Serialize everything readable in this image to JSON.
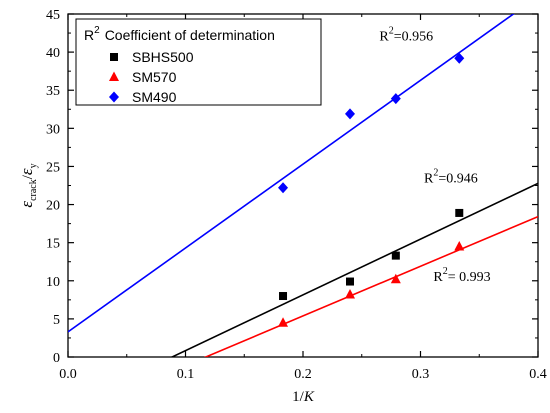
{
  "chart_data": {
    "type": "scatter",
    "xlabel": "1/K",
    "ylabel": "ε_crack/ε_y",
    "xlim": [
      0.0,
      0.4
    ],
    "ylim": [
      0,
      45
    ],
    "xticks": [
      "0.0",
      "0.1",
      "0.2",
      "0.3",
      "0.4"
    ],
    "yticks": [
      "0",
      "5",
      "10",
      "15",
      "20",
      "25",
      "30",
      "35",
      "40",
      "45"
    ],
    "legend": {
      "placement": "top-left",
      "header": {
        "symbol": "R",
        "superscript": "2",
        "text": "Coefficient of determination"
      }
    },
    "series": [
      {
        "name": "SBHS500",
        "color": "#000000",
        "marker": "square",
        "points": [
          [
            0.183,
            8.0
          ],
          [
            0.24,
            9.9
          ],
          [
            0.279,
            13.3
          ],
          [
            0.333,
            18.9
          ]
        ],
        "fit": {
          "slope": 73.15,
          "intercept": -6.48
        },
        "r2_text": "=0.946",
        "r2_at": [
          0.303,
          22.9
        ]
      },
      {
        "name": "SM570",
        "color": "#ff0000",
        "marker": "triangle",
        "points": [
          [
            0.183,
            4.5
          ],
          [
            0.24,
            8.2
          ],
          [
            0.279,
            10.2
          ],
          [
            0.333,
            14.5
          ]
        ],
        "fit": {
          "slope": 65.15,
          "intercept": -7.64
        },
        "r2_text": "= 0.993",
        "r2_at": [
          0.311,
          10.0
        ]
      },
      {
        "name": "SM490",
        "color": "#0000ff",
        "marker": "diamond",
        "points": [
          [
            0.183,
            22.2
          ],
          [
            0.24,
            31.9
          ],
          [
            0.279,
            33.9
          ],
          [
            0.333,
            39.2
          ]
        ],
        "fit": {
          "slope": 110.0,
          "intercept": 3.3
        },
        "r2_text": "=0.956",
        "r2_at": [
          0.265,
          41.5
        ]
      }
    ]
  }
}
